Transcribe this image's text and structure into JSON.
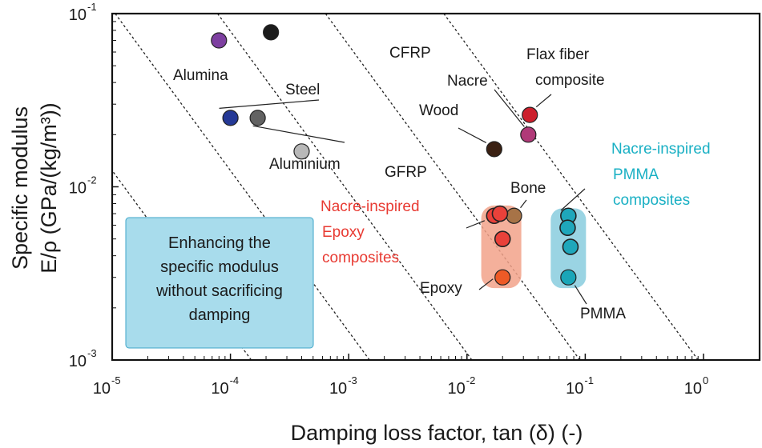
{
  "chart_data": {
    "type": "scatter",
    "xscale": "log",
    "yscale": "log",
    "xlim": [
      1e-05,
      1
    ],
    "ylim": [
      0.001,
      0.1
    ],
    "x_ticks": [
      {
        "base": "10",
        "exp": "-5"
      },
      {
        "base": "10",
        "exp": "-4"
      },
      {
        "base": "10",
        "exp": "-3"
      },
      {
        "base": "10",
        "exp": "-2"
      },
      {
        "base": "10",
        "exp": "-1"
      },
      {
        "base": "10",
        "exp": "0"
      }
    ],
    "y_ticks": [
      {
        "base": "10",
        "exp": "-3"
      },
      {
        "base": "10",
        "exp": "-2"
      },
      {
        "base": "10",
        "exp": "-1"
      }
    ],
    "xlabel": "Damping loss factor, tan (δ) (-)",
    "ylabel_line1": "Specific modulus",
    "ylabel_line2": "E/ρ (GPa/(kg/m³))",
    "points": [
      {
        "name": "Alumina",
        "x": 8e-05,
        "y": 0.07,
        "color": "#7d3fa0"
      },
      {
        "name": "CFRP",
        "x": 0.00022,
        "y": 0.078,
        "color": "#1b1b1b"
      },
      {
        "name": "Steel",
        "x": 0.0001,
        "y": 0.025,
        "color": "#253996"
      },
      {
        "name": "Aluminium",
        "x": 0.00017,
        "y": 0.025,
        "color": "#626262"
      },
      {
        "name": "GFRP",
        "x": 0.0004,
        "y": 0.016,
        "color": "#b8b8b8"
      },
      {
        "name": "Wood",
        "x": 0.017,
        "y": 0.0165,
        "color": "#3a2012"
      },
      {
        "name": "Nacre",
        "x": 0.033,
        "y": 0.02,
        "color": "#b03a78"
      },
      {
        "name": "Flax fiber composite",
        "x": 0.034,
        "y": 0.026,
        "color": "#cc1f2c"
      },
      {
        "name": "Bone",
        "x": 0.025,
        "y": 0.0068,
        "color": "#a77347"
      },
      {
        "name": "Epoxy",
        "x": 0.02,
        "y": 0.003,
        "color": "#ee5a26"
      },
      {
        "name": "PMMA",
        "x": 0.072,
        "y": 0.003,
        "color": "#1aa6b8"
      }
    ],
    "groups": [
      {
        "name": "Nacre-inspired Epoxy composites",
        "color": "#e83a32",
        "fill": "#f2a28a",
        "points": [
          {
            "x": 0.017,
            "y": 0.0068
          },
          {
            "x": 0.019,
            "y": 0.007
          },
          {
            "x": 0.02,
            "y": 0.005
          }
        ]
      },
      {
        "name": "Nacre-inspired PMMA composites",
        "color": "#1ab0c4",
        "fill": "#8fcfe0",
        "points": [
          {
            "x": 0.072,
            "y": 0.0068
          },
          {
            "x": 0.071,
            "y": 0.0058
          },
          {
            "x": 0.075,
            "y": 0.0045
          }
        ]
      }
    ],
    "labels": {
      "alumina": "Alumina",
      "cfrp": "CFRP",
      "steel": "Steel",
      "aluminium": "Aluminium",
      "gfrp": "GFRP",
      "wood": "Wood",
      "nacre": "Nacre",
      "flax1": "Flax fiber",
      "flax2": "composite",
      "bone": "Bone",
      "epoxy": "Epoxy",
      "pmma": "PMMA",
      "epoxy_group1": "Nacre-inspired",
      "epoxy_group2": "Epoxy",
      "epoxy_group3": "composites",
      "pmma_group1": "Nacre-inspired",
      "pmma_group2": "PMMA",
      "pmma_group3": "composites"
    },
    "annotation_box": {
      "lines": [
        "Enhancing the",
        "specific modulus",
        "without sacrificing",
        "damping"
      ],
      "fill": "#a8dcec",
      "stroke": "#3fa6c9"
    }
  }
}
